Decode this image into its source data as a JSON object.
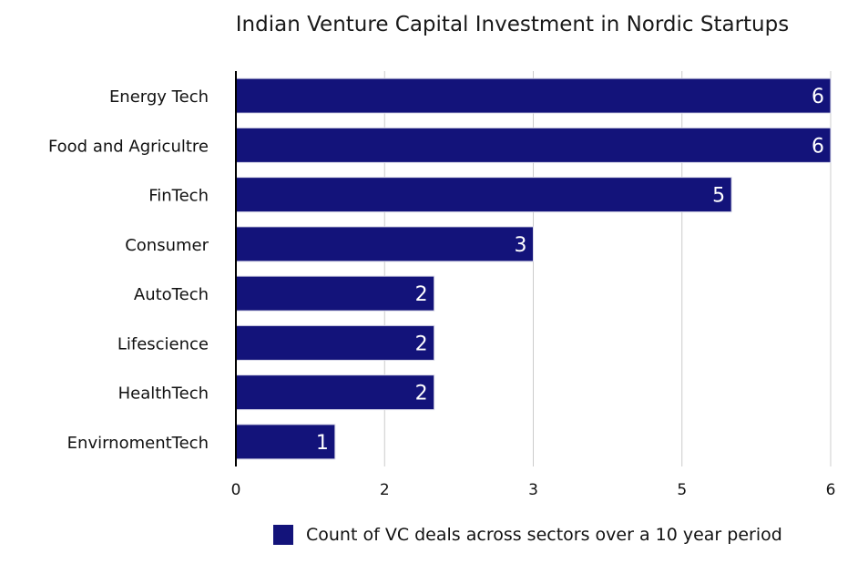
{
  "chart_data": {
    "type": "bar",
    "orientation": "horizontal",
    "title": "Indian Venture Capital Investment in Nordic Startups",
    "categories": [
      "Energy Tech",
      "Food and Agricultre",
      "FinTech",
      "Consumer",
      "AutoTech",
      "Lifescience",
      "HealthTech",
      "EnvirnomentTech"
    ],
    "series": [
      {
        "name": "Count of VC deals across sectors over a 10 year period",
        "values": [
          6,
          6,
          5,
          3,
          2,
          2,
          2,
          1
        ]
      }
    ],
    "xticks": [
      "0",
      "2",
      "3",
      "5",
      "6"
    ],
    "xlim": [
      0,
      6
    ],
    "grid": true,
    "legend": "bottom",
    "bar_color": "#13137a"
  }
}
